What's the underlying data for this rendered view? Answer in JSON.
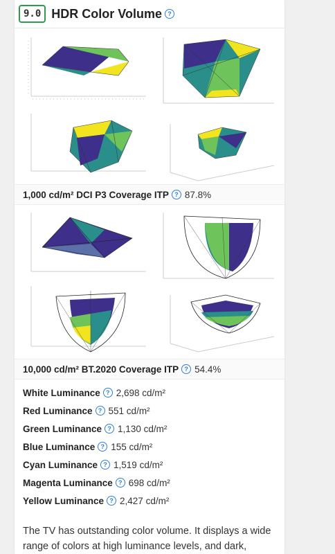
{
  "header": {
    "score": "9.0",
    "title": "HDR Color Volume",
    "help_glyph": "?"
  },
  "gallery_1": {
    "caption_label": "1,000 cd/m² DCI P3 Coverage ITP",
    "caption_value": "87.8%"
  },
  "gallery_2": {
    "caption_label": "10,000 cd/m² BT.2020 Coverage ITP",
    "caption_value": "54.4%"
  },
  "stats": [
    {
      "label": "White Luminance",
      "value": "2,698 cd/m²"
    },
    {
      "label": "Red Luminance",
      "value": "551 cd/m²"
    },
    {
      "label": "Green Luminance",
      "value": "1,130 cd/m²"
    },
    {
      "label": "Blue Luminance",
      "value": "155 cd/m²"
    },
    {
      "label": "Cyan Luminance",
      "value": "1,519 cd/m²"
    },
    {
      "label": "Magenta Luminance",
      "value": "698 cd/m²"
    },
    {
      "label": "Yellow Luminance",
      "value": "2,427 cd/m²"
    }
  ],
  "description": "The TV has outstanding color volume. It displays a wide range of colors at high luminance levels, and dark, saturated colors are displayed well due to its",
  "colors": {
    "score_border": "#2e9a4a",
    "help_icon": "#2f7fd1",
    "volume_purple": "#3d2f8a",
    "volume_teal": "#2a8f8a",
    "volume_green": "#6fc35b",
    "volume_yellow": "#f2e41e"
  }
}
